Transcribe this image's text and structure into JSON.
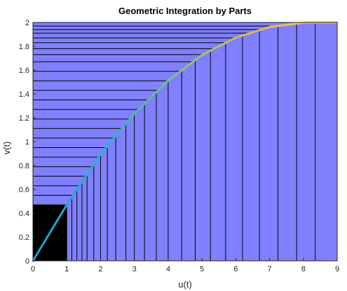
{
  "chart_data": {
    "type": "area",
    "title": "Geometric Integration by Parts",
    "xlabel": "u(t)",
    "ylabel": "v(t)",
    "xlim": [
      0,
      9
    ],
    "ylim": [
      0,
      2
    ],
    "xticks": [
      "0",
      "1",
      "2",
      "3",
      "4",
      "5",
      "6",
      "7",
      "8",
      "9"
    ],
    "yticks": [
      "0",
      "0.2",
      "0.4",
      "0.6",
      "0.8",
      "1",
      "1.2",
      "1.4",
      "1.6",
      "1.8",
      "2"
    ],
    "grid": false,
    "curve": {
      "x": [
        0,
        1,
        2,
        3,
        4,
        5,
        6,
        7,
        8,
        9
      ],
      "y": [
        0,
        0.47,
        0.894,
        1.235,
        1.512,
        1.727,
        1.872,
        1.962,
        1.998,
        2.0
      ],
      "colormap": [
        "#1f9bd4",
        "#2ab6c4",
        "#8cc56a",
        "#e5b852",
        "#f5d73a"
      ]
    },
    "fill_color": "#8080ff",
    "lower_left_rect": {
      "u": [
        0,
        1
      ],
      "v": [
        0,
        0.47
      ],
      "color": "#000000"
    },
    "vertical_strip_u": [
      1.0,
      1.15,
      1.3,
      1.45,
      1.6,
      1.8,
      2.0,
      2.2,
      2.45,
      2.75,
      3.0,
      3.3,
      3.65,
      4.0,
      4.4,
      4.8,
      5.25,
      5.7,
      6.2,
      6.7,
      7.25,
      7.8,
      8.35,
      9.0
    ],
    "horizontal_strip_v": [
      0.47,
      0.55,
      0.63,
      0.71,
      0.79,
      0.87,
      0.95,
      1.03,
      1.11,
      1.19,
      1.27,
      1.35,
      1.43,
      1.51,
      1.59,
      1.67,
      1.73,
      1.78,
      1.83,
      1.87,
      1.91,
      1.94,
      1.97,
      2.0
    ]
  }
}
